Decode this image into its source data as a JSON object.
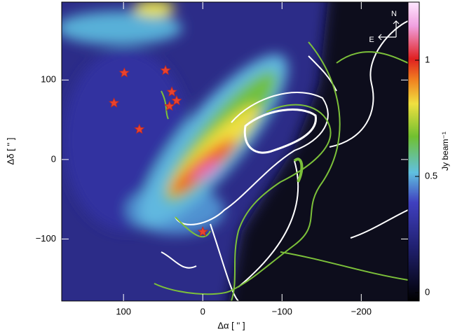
{
  "chart_data": {
    "type": "scatter",
    "x_label": "Δα [ '' ]",
    "y_label": "Δδ [ '' ]",
    "xlim": [
      178,
      -259
    ],
    "ylim": [
      -178,
      198
    ],
    "xticks": [
      100,
      0,
      {
        "value": -100,
        "label": "−100"
      },
      {
        "value": -200,
        "label": "−200"
      }
    ],
    "yticks": [
      {
        "value": -100,
        "label": "−100"
      },
      0,
      100
    ],
    "x": [
      99,
      47,
      112,
      39,
      33,
      42,
      80,
      0
    ],
    "values": [
      109,
      112,
      71,
      85,
      74,
      67,
      38,
      -91
    ],
    "color": "#e8432f",
    "marker": "star",
    "colorbar": {
      "label": "Jy beam⁻¹",
      "lim": [
        -0.036,
        1.25
      ],
      "ticks": [
        0,
        0.5,
        1
      ]
    },
    "compass": {
      "north": "N",
      "east": "E"
    }
  }
}
